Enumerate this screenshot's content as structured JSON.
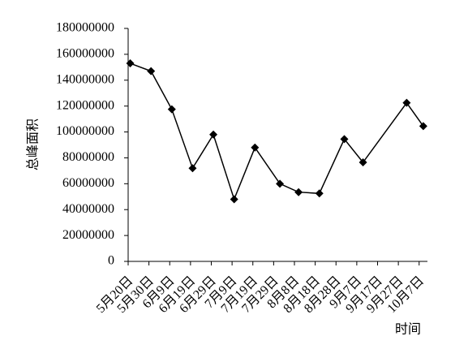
{
  "chart_data": {
    "type": "line",
    "y_label": "总峰面积",
    "x_label": "时间",
    "series": [
      {
        "name": "总峰面积",
        "color": "#000000",
        "x": [
          141,
          151,
          161,
          171,
          181,
          191,
          201,
          213,
          222,
          232,
          244,
          253,
          274,
          282
        ],
        "values": [
          153000000,
          147000000,
          117500000,
          72000000,
          98000000,
          48000000,
          88000000,
          60000000,
          53500000,
          52500000,
          94500000,
          76500000,
          122500000,
          104500000
        ]
      }
    ],
    "xlim": [
      140,
      284
    ],
    "xticks": [
      {
        "value": 140,
        "label": "5月20日"
      },
      {
        "value": 150,
        "label": "5月30日"
      },
      {
        "value": 160,
        "label": "6月9日"
      },
      {
        "value": 170,
        "label": "6月19日"
      },
      {
        "value": 180,
        "label": "6月29日"
      },
      {
        "value": 190,
        "label": "7月9日"
      },
      {
        "value": 200,
        "label": "7月19日"
      },
      {
        "value": 210,
        "label": "7月29日"
      },
      {
        "value": 220,
        "label": "8月8日"
      },
      {
        "value": 230,
        "label": "8月18日"
      },
      {
        "value": 240,
        "label": "8月28日"
      },
      {
        "value": 250,
        "label": "9月7日"
      },
      {
        "value": 260,
        "label": "9月17日"
      },
      {
        "value": 270,
        "label": "9月27日"
      },
      {
        "value": 280,
        "label": "10月7日"
      }
    ],
    "ylim": [
      0,
      180000000
    ],
    "yticks": [
      0,
      20000000,
      40000000,
      60000000,
      80000000,
      100000000,
      120000000,
      140000000,
      160000000,
      180000000
    ],
    "grid": false
  }
}
